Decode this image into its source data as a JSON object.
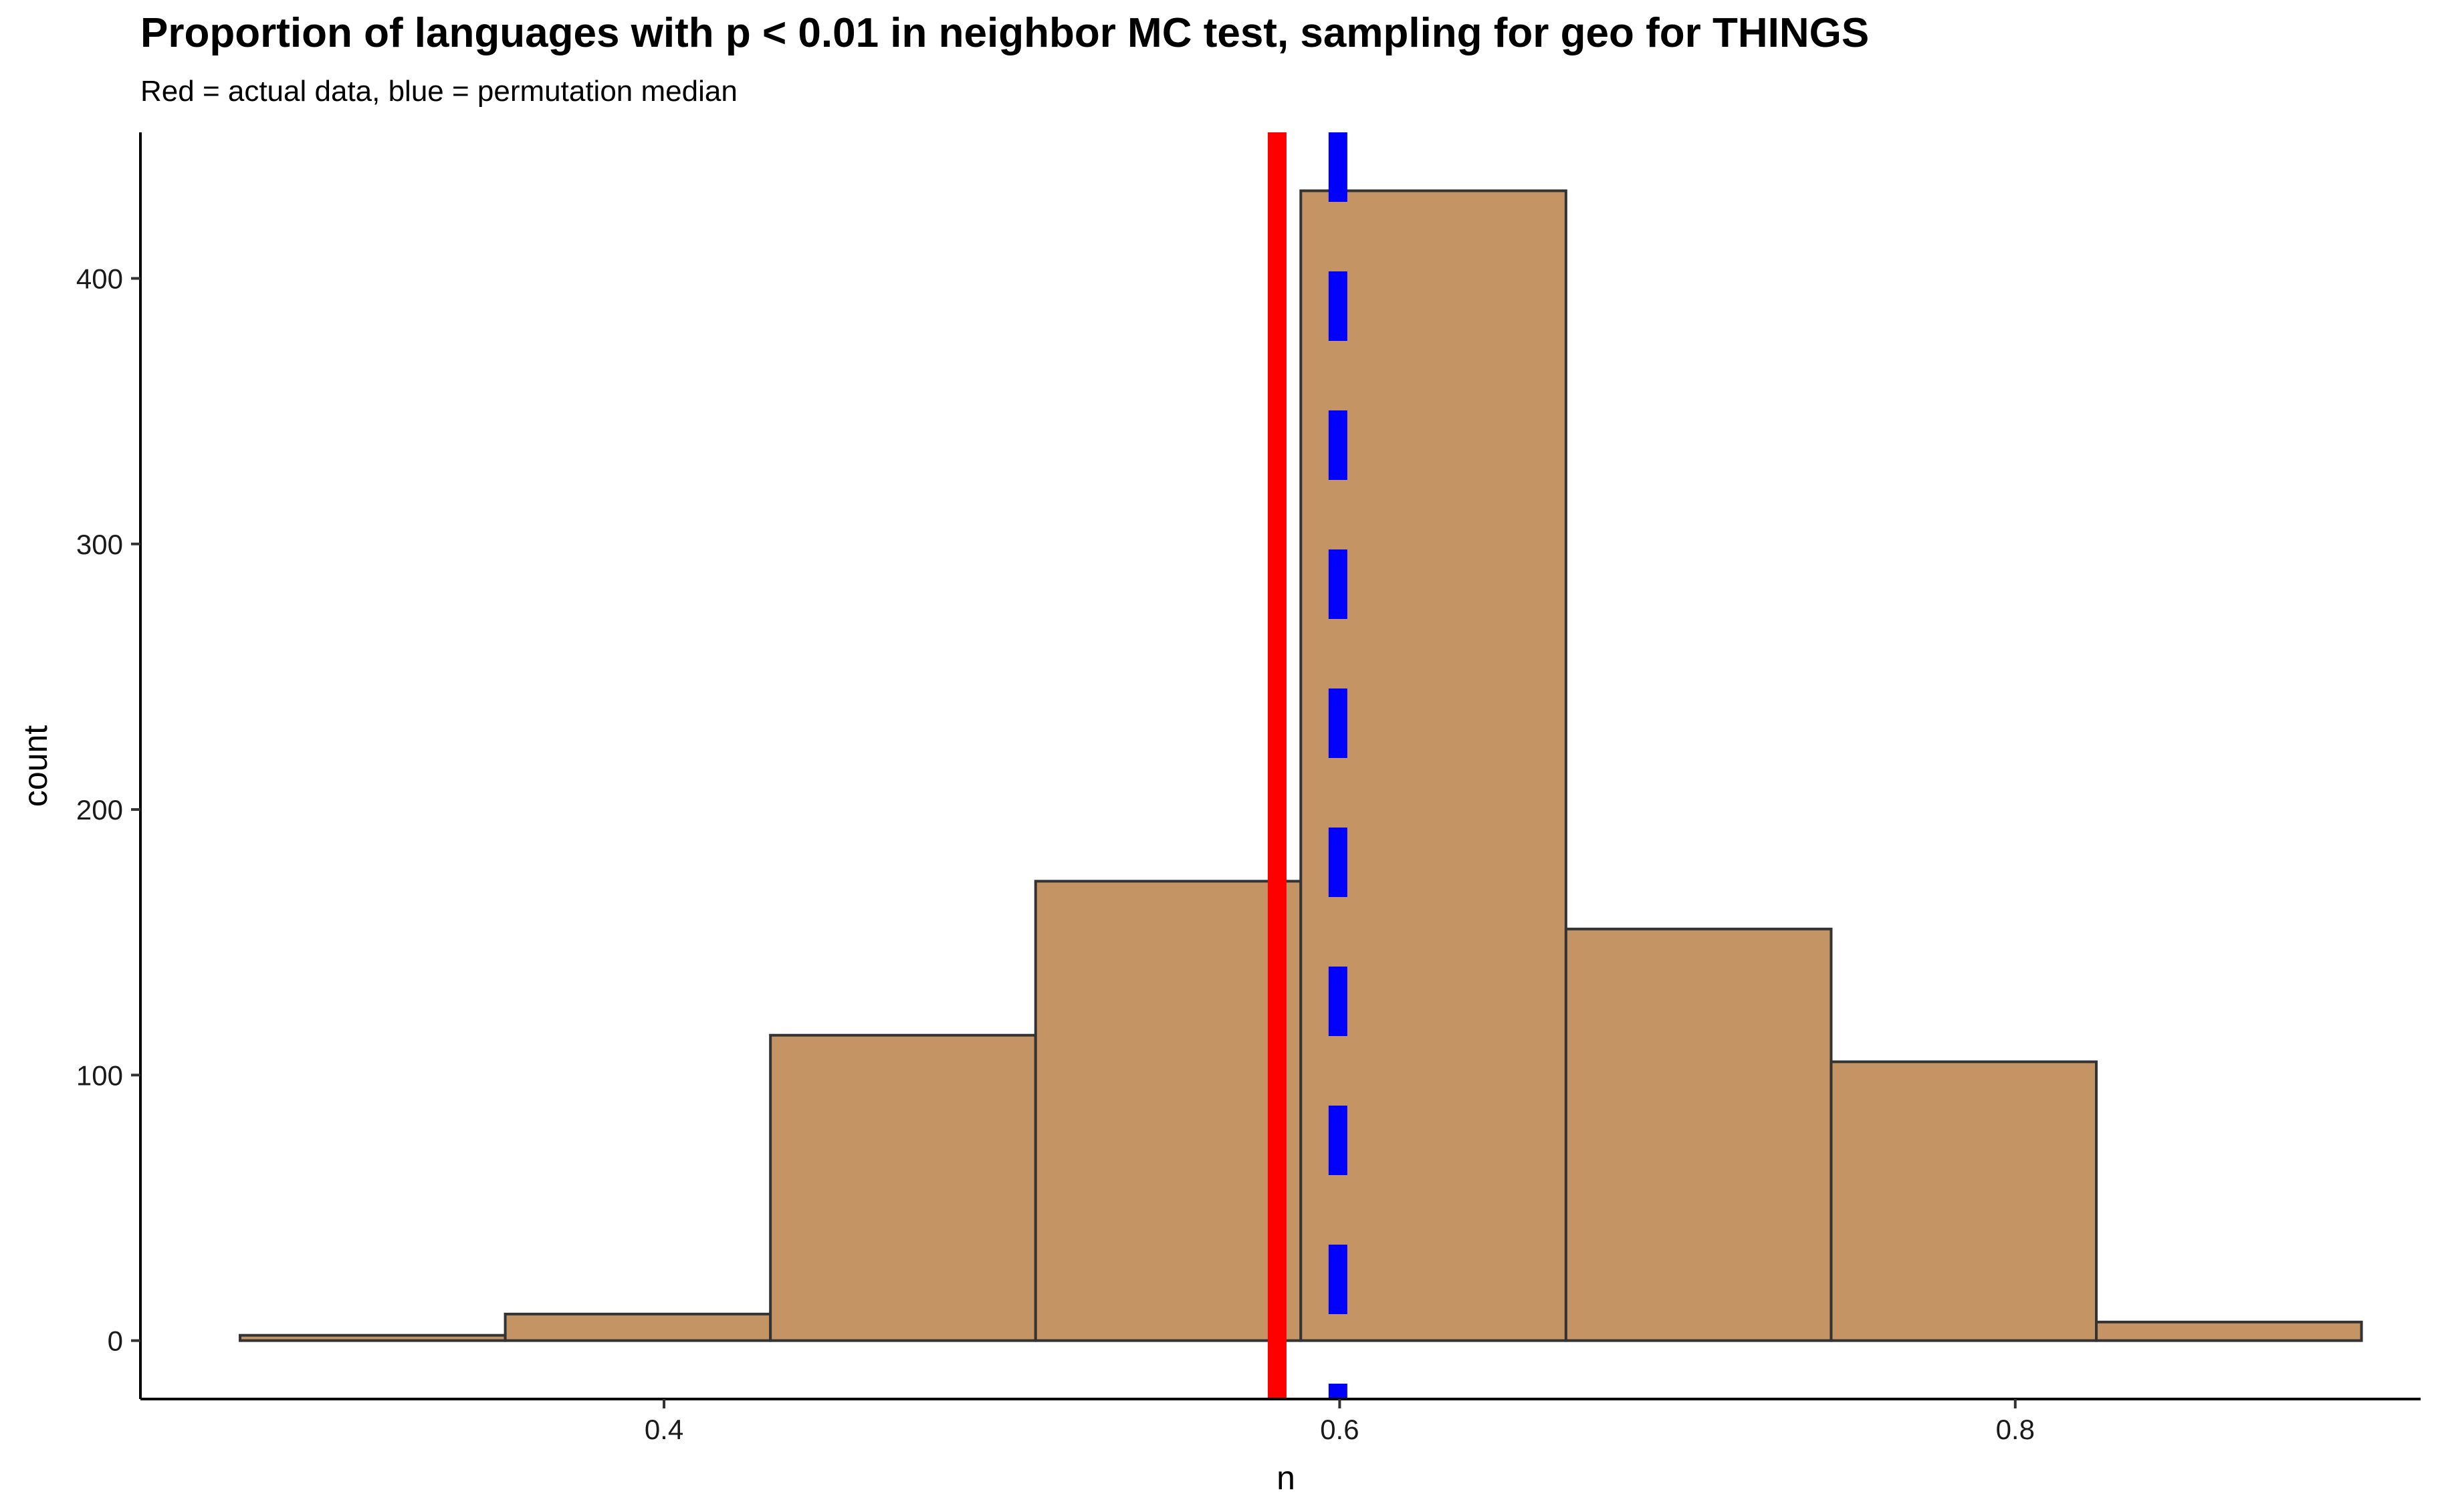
{
  "chart_data": {
    "type": "bar",
    "subtype": "histogram",
    "title": "Proportion of languages with p < 0.01 in neighbor MC test, sampling for geo for THINGS",
    "subtitle": "Red = actual data, blue = permutation median",
    "xlabel": "n",
    "ylabel": "count",
    "xlim": [
      0.245,
      0.92
    ],
    "ylim": [
      -22,
      455
    ],
    "x_ticks": [
      0.4,
      0.6,
      0.8
    ],
    "x_tick_labels": [
      "0.4",
      "0.6",
      "0.8"
    ],
    "y_ticks": [
      0,
      100,
      200,
      300,
      400
    ],
    "y_tick_labels": [
      "0",
      "100",
      "200",
      "300",
      "400"
    ],
    "bins": [
      {
        "x0": 0.2745,
        "x1": 0.353,
        "count": 2
      },
      {
        "x0": 0.353,
        "x1": 0.4315,
        "count": 10
      },
      {
        "x0": 0.4315,
        "x1": 0.51,
        "count": 115
      },
      {
        "x0": 0.51,
        "x1": 0.5885,
        "count": 173
      },
      {
        "x0": 0.5885,
        "x1": 0.667,
        "count": 433
      },
      {
        "x0": 0.667,
        "x1": 0.7455,
        "count": 155
      },
      {
        "x0": 0.7455,
        "x1": 0.824,
        "count": 105
      },
      {
        "x0": 0.824,
        "x1": 0.9025,
        "count": 7
      }
    ],
    "reference_lines": [
      {
        "x": 0.5815,
        "color": "#ff0000",
        "style": "solid"
      },
      {
        "x": 0.5995,
        "color": "#0000ff",
        "style": "dashed"
      }
    ],
    "bar_fill": "#c49464",
    "bar_stroke": "#333333",
    "grid": false,
    "legend": "none"
  }
}
